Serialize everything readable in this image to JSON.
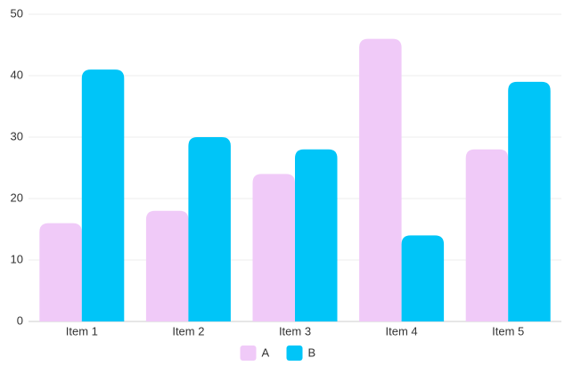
{
  "chart_data": {
    "type": "bar",
    "categories": [
      "Item 1",
      "Item 2",
      "Item 3",
      "Item 4",
      "Item 5"
    ],
    "series": [
      {
        "name": "A",
        "color": "#f0caf8",
        "values": [
          16,
          18,
          24,
          46,
          28
        ]
      },
      {
        "name": "B",
        "color": "#00c5f8",
        "values": [
          41,
          30,
          28,
          14,
          39
        ]
      }
    ],
    "ylim": [
      0,
      50
    ],
    "yticks": [
      0,
      10,
      20,
      30,
      40,
      50
    ],
    "grid": true,
    "legend": "bottom"
  }
}
